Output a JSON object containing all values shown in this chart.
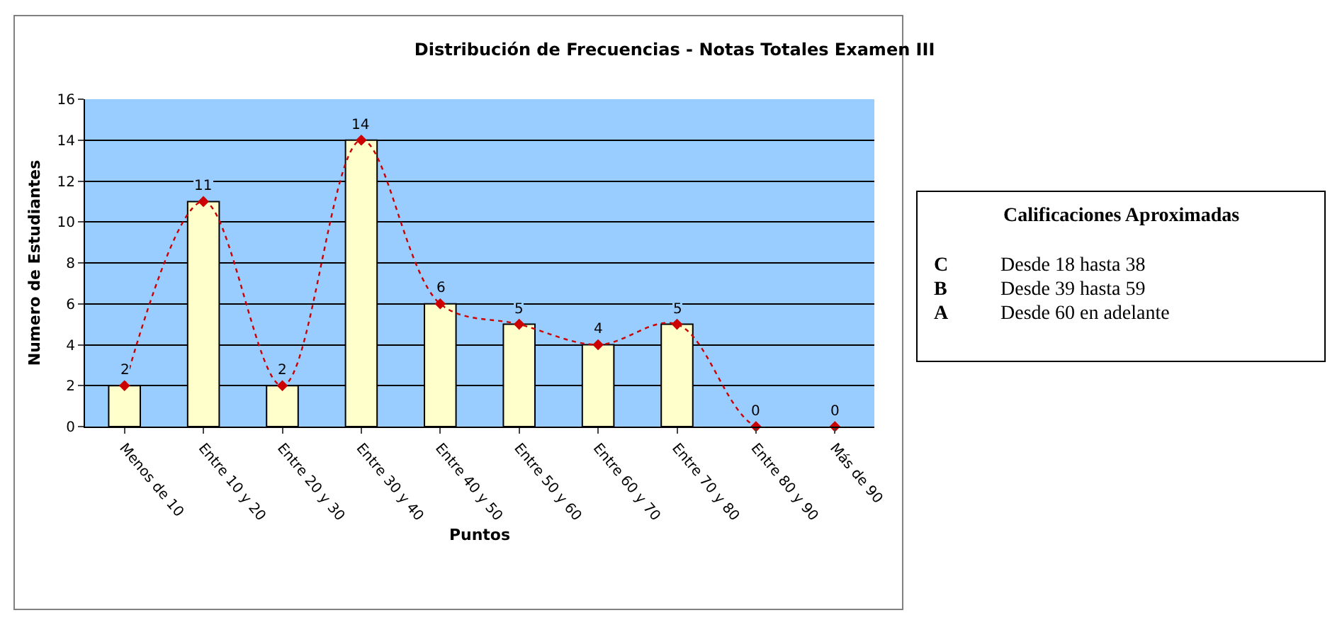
{
  "chart_data": {
    "type": "bar",
    "title": "Distribución de Frecuencias - Notas Totales Examen III",
    "xlabel": "Puntos",
    "ylabel": "Numero de Estudiantes",
    "categories": [
      "Menos de 10",
      "Entre 10 y 20",
      "Entre 20 y 30",
      "Entre 30 y 40",
      "Entre 40 y 50",
      "Entre 50 y 60",
      "Entre 60 y 70",
      "Entre 70 y 80",
      "Entre 80 y 90",
      "Más de 90"
    ],
    "series": [
      {
        "color": "#ffffcc",
        "values": [
          2,
          11,
          2,
          14,
          6,
          5,
          4,
          5,
          0,
          0
        ]
      },
      {
        "type": "line",
        "color": "#cc0000",
        "values": [
          2,
          11,
          2,
          14,
          6,
          5,
          4,
          5,
          0,
          0
        ],
        "marker": "diamond",
        "line_style": "dotted",
        "value_labels": [
          "2",
          "11",
          "2",
          "14",
          "6",
          "5",
          "4",
          "5",
          "0",
          "0"
        ]
      }
    ],
    "ylim": [
      0,
      16
    ],
    "yticks": [
      0,
      2,
      4,
      6,
      8,
      10,
      12,
      14,
      16
    ],
    "grid": "y",
    "legend": false,
    "annotations": [
      "Calificaciones Aproximadas",
      "C",
      "Desde 18 hasta 38",
      "B",
      "Desde 39 hasta 59",
      "A",
      "Desde 60 en adelante"
    ]
  }
}
